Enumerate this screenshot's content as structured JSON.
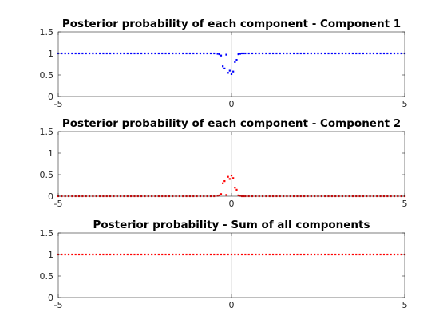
{
  "chart_data": [
    {
      "type": "scatter",
      "title": "Posterior probability of each component - Component 1",
      "xlabel": "",
      "ylabel": "",
      "xlim": [
        -5,
        5
      ],
      "ylim": [
        0,
        1.5
      ],
      "xticks": [
        "-5",
        "0",
        "5"
      ],
      "yticks": [
        "0",
        "0.5",
        "1",
        "1.5"
      ],
      "xtick_values": [
        -5,
        0,
        5
      ],
      "ytick_values": [
        0,
        0.5,
        1,
        1.5
      ],
      "grid": "x=0 only",
      "color": "#0000ff",
      "series": [
        {
          "x": [
            -5,
            -4.9,
            -4.8,
            -4.7,
            -4.6,
            -4.5,
            -4.4,
            -4.3,
            -4.2,
            -4.1,
            -4,
            -3.9,
            -3.8,
            -3.7,
            -3.6,
            -3.5,
            -3.4,
            -3.3,
            -3.2,
            -3.1,
            -3,
            -2.9,
            -2.8,
            -2.7,
            -2.6,
            -2.5,
            -2.4,
            -2.3,
            -2.2,
            -2.1,
            -2,
            -1.9,
            -1.8,
            -1.7,
            -1.6,
            -1.5,
            -1.4,
            -1.3,
            -1.2,
            -1.1,
            -1,
            -0.9,
            -0.8,
            -0.7,
            -0.6,
            -0.5,
            -0.4,
            -0.35,
            -0.3,
            -0.25,
            -0.2,
            -0.15,
            -0.1,
            -0.05,
            0,
            0.05,
            0.1,
            0.15,
            0.2,
            0.25,
            0.3,
            0.35,
            0.4,
            0.5,
            0.6,
            0.7,
            0.8,
            0.9,
            1,
            1.1,
            1.2,
            1.3,
            1.4,
            1.5,
            1.6,
            1.7,
            1.8,
            1.9,
            2,
            2.1,
            2.2,
            2.3,
            2.4,
            2.5,
            2.6,
            2.7,
            2.8,
            2.9,
            3,
            3.1,
            3.2,
            3.3,
            3.4,
            3.5,
            3.6,
            3.7,
            3.8,
            3.9,
            4,
            4.1,
            4.2,
            4.3,
            4.4,
            4.5,
            4.6,
            4.7,
            4.8,
            4.9,
            5
          ],
          "y": [
            1,
            1,
            1,
            1,
            1,
            1,
            1,
            1,
            1,
            1,
            1,
            1,
            1,
            1,
            1,
            1,
            1,
            1,
            1,
            1,
            1,
            1,
            1,
            1,
            1,
            1,
            1,
            1,
            1,
            1,
            1,
            1,
            1,
            1,
            1,
            1,
            1,
            1,
            1,
            1,
            1,
            1,
            1,
            1,
            1,
            1,
            0.99,
            0.98,
            0.95,
            0.7,
            0.65,
            0.97,
            0.55,
            0.6,
            0.52,
            0.58,
            0.8,
            0.85,
            0.98,
            0.99,
            1,
            1,
            1,
            1,
            1,
            1,
            1,
            1,
            1,
            1,
            1,
            1,
            1,
            1,
            1,
            1,
            1,
            1,
            1,
            1,
            1,
            1,
            1,
            1,
            1,
            1,
            1,
            1,
            1,
            1,
            1,
            1,
            1,
            1,
            1,
            1,
            1,
            1,
            1,
            1,
            1,
            1,
            1,
            1,
            1,
            1,
            1,
            1,
            1
          ]
        }
      ]
    },
    {
      "type": "scatter",
      "title": "Posterior probability of each component - Component 2",
      "xlabel": "",
      "ylabel": "",
      "xlim": [
        -5,
        5
      ],
      "ylim": [
        0,
        1.5
      ],
      "xticks": [
        "-5",
        "0",
        "5"
      ],
      "yticks": [
        "0",
        "0.5",
        "1",
        "1.5"
      ],
      "xtick_values": [
        -5,
        0,
        5
      ],
      "ytick_values": [
        0,
        0.5,
        1,
        1.5
      ],
      "grid": "x=0 only",
      "color": "#ff0000",
      "series": [
        {
          "x": [
            -5,
            -4.9,
            -4.8,
            -4.7,
            -4.6,
            -4.5,
            -4.4,
            -4.3,
            -4.2,
            -4.1,
            -4,
            -3.9,
            -3.8,
            -3.7,
            -3.6,
            -3.5,
            -3.4,
            -3.3,
            -3.2,
            -3.1,
            -3,
            -2.9,
            -2.8,
            -2.7,
            -2.6,
            -2.5,
            -2.4,
            -2.3,
            -2.2,
            -2.1,
            -2,
            -1.9,
            -1.8,
            -1.7,
            -1.6,
            -1.5,
            -1.4,
            -1.3,
            -1.2,
            -1.1,
            -1,
            -0.9,
            -0.8,
            -0.7,
            -0.6,
            -0.5,
            -0.4,
            -0.35,
            -0.3,
            -0.25,
            -0.2,
            -0.15,
            -0.1,
            -0.05,
            0,
            0.05,
            0.1,
            0.15,
            0.2,
            0.25,
            0.3,
            0.35,
            0.4,
            0.5,
            0.6,
            0.7,
            0.8,
            0.9,
            1,
            1.1,
            1.2,
            1.3,
            1.4,
            1.5,
            1.6,
            1.7,
            1.8,
            1.9,
            2,
            2.1,
            2.2,
            2.3,
            2.4,
            2.5,
            2.6,
            2.7,
            2.8,
            2.9,
            3,
            3.1,
            3.2,
            3.3,
            3.4,
            3.5,
            3.6,
            3.7,
            3.8,
            3.9,
            4,
            4.1,
            4.2,
            4.3,
            4.4,
            4.5,
            4.6,
            4.7,
            4.8,
            4.9,
            5
          ],
          "y": [
            0,
            0,
            0,
            0,
            0,
            0,
            0,
            0,
            0,
            0,
            0,
            0,
            0,
            0,
            0,
            0,
            0,
            0,
            0,
            0,
            0,
            0,
            0,
            0,
            0,
            0,
            0,
            0,
            0,
            0,
            0,
            0,
            0,
            0,
            0,
            0,
            0,
            0,
            0,
            0,
            0,
            0,
            0,
            0,
            0,
            0,
            0.01,
            0.02,
            0.05,
            0.3,
            0.35,
            0.03,
            0.45,
            0.4,
            0.48,
            0.42,
            0.2,
            0.15,
            0.02,
            0.01,
            0,
            0,
            0,
            0,
            0,
            0,
            0,
            0,
            0,
            0,
            0,
            0,
            0,
            0,
            0,
            0,
            0,
            0,
            0,
            0,
            0,
            0,
            0,
            0,
            0,
            0,
            0,
            0,
            0,
            0,
            0,
            0,
            0,
            0,
            0,
            0,
            0,
            0,
            0,
            0,
            0,
            0,
            0,
            0,
            0,
            0,
            0,
            0,
            0
          ]
        }
      ]
    },
    {
      "type": "scatter",
      "title": "Posterior probability - Sum of all components",
      "xlabel": "",
      "ylabel": "",
      "xlim": [
        -5,
        5
      ],
      "ylim": [
        0,
        1.5
      ],
      "xticks": [
        "-5",
        "0",
        "5"
      ],
      "yticks": [
        "0",
        "0.5",
        "1",
        "1.5"
      ],
      "xtick_values": [
        -5,
        0,
        5
      ],
      "ytick_values": [
        0,
        0.5,
        1,
        1.5
      ],
      "grid": "x=0 only",
      "color": "#ff0000",
      "series": [
        {
          "x": [
            -5,
            -4.9,
            -4.8,
            -4.7,
            -4.6,
            -4.5,
            -4.4,
            -4.3,
            -4.2,
            -4.1,
            -4,
            -3.9,
            -3.8,
            -3.7,
            -3.6,
            -3.5,
            -3.4,
            -3.3,
            -3.2,
            -3.1,
            -3,
            -2.9,
            -2.8,
            -2.7,
            -2.6,
            -2.5,
            -2.4,
            -2.3,
            -2.2,
            -2.1,
            -2,
            -1.9,
            -1.8,
            -1.7,
            -1.6,
            -1.5,
            -1.4,
            -1.3,
            -1.2,
            -1.1,
            -1,
            -0.9,
            -0.8,
            -0.7,
            -0.6,
            -0.5,
            -0.4,
            -0.3,
            -0.2,
            -0.1,
            0,
            0.1,
            0.2,
            0.3,
            0.4,
            0.5,
            0.6,
            0.7,
            0.8,
            0.9,
            1,
            1.1,
            1.2,
            1.3,
            1.4,
            1.5,
            1.6,
            1.7,
            1.8,
            1.9,
            2,
            2.1,
            2.2,
            2.3,
            2.4,
            2.5,
            2.6,
            2.7,
            2.8,
            2.9,
            3,
            3.1,
            3.2,
            3.3,
            3.4,
            3.5,
            3.6,
            3.7,
            3.8,
            3.9,
            4,
            4.1,
            4.2,
            4.3,
            4.4,
            4.5,
            4.6,
            4.7,
            4.8,
            4.9,
            5
          ],
          "y": [
            1,
            1,
            1,
            1,
            1,
            1,
            1,
            1,
            1,
            1,
            1,
            1,
            1,
            1,
            1,
            1,
            1,
            1,
            1,
            1,
            1,
            1,
            1,
            1,
            1,
            1,
            1,
            1,
            1,
            1,
            1,
            1,
            1,
            1,
            1,
            1,
            1,
            1,
            1,
            1,
            1,
            1,
            1,
            1,
            1,
            1,
            1,
            1,
            1,
            1,
            1,
            1,
            1,
            1,
            1,
            1,
            1,
            1,
            1,
            1,
            1,
            1,
            1,
            1,
            1,
            1,
            1,
            1,
            1,
            1,
            1,
            1,
            1,
            1,
            1,
            1,
            1,
            1,
            1,
            1,
            1,
            1,
            1,
            1,
            1,
            1,
            1,
            1,
            1,
            1,
            1,
            1,
            1,
            1,
            1,
            1,
            1,
            1,
            1,
            1,
            1
          ]
        }
      ]
    }
  ]
}
